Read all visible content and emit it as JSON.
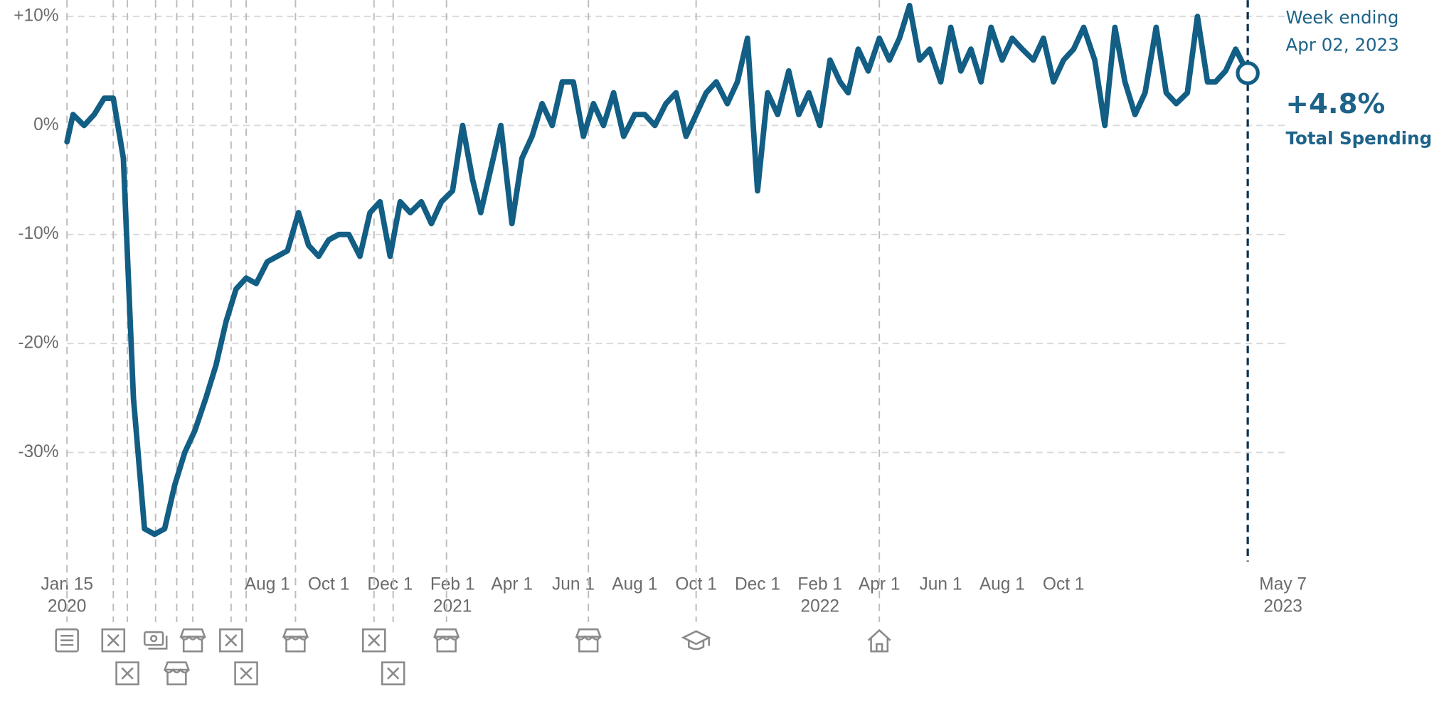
{
  "chart_data": {
    "type": "line",
    "x": [
      "2020-01-15",
      "2020-01-21",
      "2020-02-01",
      "2020-02-11",
      "2020-02-21",
      "2020-03-01",
      "2020-03-11",
      "2020-03-21",
      "2020-04-01",
      "2020-04-11",
      "2020-04-21",
      "2020-05-01",
      "2020-05-11",
      "2020-05-21",
      "2020-06-01",
      "2020-06-11",
      "2020-06-21",
      "2020-07-01",
      "2020-07-11",
      "2020-07-21",
      "2020-08-01",
      "2020-08-11",
      "2020-08-21",
      "2020-09-01",
      "2020-09-11",
      "2020-09-21",
      "2020-10-01",
      "2020-10-11",
      "2020-10-21",
      "2020-11-01",
      "2020-11-11",
      "2020-11-21",
      "2020-12-01",
      "2020-12-11",
      "2020-12-21",
      "2021-01-01",
      "2021-01-11",
      "2021-01-21",
      "2021-02-01",
      "2021-02-11",
      "2021-02-21",
      "2021-03-01",
      "2021-03-11",
      "2021-03-21",
      "2021-04-01",
      "2021-04-11",
      "2021-04-21",
      "2021-05-01",
      "2021-05-11",
      "2021-05-21",
      "2021-06-01",
      "2021-06-11",
      "2021-06-21",
      "2021-07-01",
      "2021-07-11",
      "2021-07-21",
      "2021-08-01",
      "2021-08-11",
      "2021-08-21",
      "2021-09-01",
      "2021-09-11",
      "2021-09-21",
      "2021-10-01",
      "2021-10-11",
      "2021-10-21",
      "2021-11-01",
      "2021-11-11",
      "2021-11-21",
      "2021-12-01",
      "2021-12-11",
      "2021-12-21",
      "2022-01-01",
      "2022-01-11",
      "2022-01-21",
      "2022-02-01",
      "2022-02-11",
      "2022-02-21",
      "2022-03-01",
      "2022-03-11",
      "2022-03-21",
      "2022-04-01",
      "2022-04-11",
      "2022-04-21",
      "2022-05-01",
      "2022-05-11",
      "2022-05-21",
      "2022-06-01",
      "2022-06-11",
      "2022-06-21",
      "2022-07-01",
      "2022-07-11",
      "2022-07-21",
      "2022-08-01",
      "2022-08-11",
      "2022-08-21",
      "2022-09-01",
      "2022-09-11",
      "2022-09-21",
      "2022-10-01",
      "2022-10-11",
      "2022-10-21",
      "2022-11-01",
      "2022-11-11",
      "2022-11-21",
      "2022-12-01",
      "2022-12-11",
      "2022-12-21",
      "2023-01-01",
      "2023-01-11",
      "2023-01-21",
      "2023-02-01",
      "2023-02-11",
      "2023-02-21",
      "2023-03-01",
      "2023-03-11",
      "2023-03-21",
      "2023-04-02"
    ],
    "series": [
      {
        "name": "Total Spending",
        "color": "#125e84",
        "values": [
          -1.5,
          1,
          0,
          1,
          2.5,
          2.5,
          -3,
          -25,
          -37,
          -37.5,
          -37,
          -33,
          -30,
          -28,
          -25,
          -22,
          -18,
          -15,
          -14,
          -14.5,
          -12.5,
          -12,
          -11.5,
          -8,
          -11,
          -12,
          -10.5,
          -10,
          -10,
          -12,
          -8,
          -7,
          -12,
          -7,
          -8,
          -7,
          -9,
          -7,
          -6,
          0,
          -5,
          -8,
          -4,
          0,
          -9,
          -3,
          -1,
          2,
          0,
          4,
          4,
          -1,
          2,
          0,
          3,
          -1,
          1,
          1,
          0,
          2,
          3,
          -1,
          1,
          3,
          4,
          2,
          4,
          8,
          -6,
          3,
          1,
          5,
          1,
          3,
          0,
          6,
          4,
          3,
          7,
          5,
          8,
          6,
          8,
          11,
          6,
          7,
          4,
          9,
          5,
          7,
          4,
          9,
          6,
          8,
          7,
          6,
          8,
          4,
          6,
          7,
          9,
          6,
          0,
          9,
          4,
          1,
          3,
          9,
          3,
          2,
          3,
          10,
          4,
          4,
          5,
          7,
          4.8
        ]
      }
    ],
    "xlim": [
      "2020-01-15",
      "2023-05-07"
    ],
    "xticks": [
      {
        "value": "2020-01-15",
        "label": "Jan 15"
      },
      {
        "value": "2020-08-01",
        "label": "Aug 1"
      },
      {
        "value": "2020-10-01",
        "label": "Oct 1"
      },
      {
        "value": "2020-12-01",
        "label": "Dec 1"
      },
      {
        "value": "2021-02-01",
        "label": "Feb 1"
      },
      {
        "value": "2021-04-01",
        "label": "Apr 1"
      },
      {
        "value": "2021-06-01",
        "label": "Jun 1"
      },
      {
        "value": "2021-08-01",
        "label": "Aug 1"
      },
      {
        "value": "2021-10-01",
        "label": "Oct 1"
      },
      {
        "value": "2021-12-01",
        "label": "Dec 1"
      },
      {
        "value": "2022-02-01",
        "label": "Feb 1"
      },
      {
        "value": "2022-04-01",
        "label": "Apr 1"
      },
      {
        "value": "2022-06-01",
        "label": "Jun 1"
      },
      {
        "value": "2022-08-01",
        "label": "Aug 1"
      },
      {
        "value": "2022-10-01",
        "label": "Oct 1"
      },
      {
        "value": "2023-05-07",
        "label": "May 7"
      }
    ],
    "xtick_years": [
      {
        "value": "2020-01-15",
        "label": "2020"
      },
      {
        "value": "2021-02-01",
        "label": "2021"
      },
      {
        "value": "2022-02-01",
        "label": "2022"
      },
      {
        "value": "2023-05-07",
        "label": "2023"
      }
    ],
    "ylim": [
      -40,
      11.5
    ],
    "yticks": [
      {
        "value": -30,
        "label": "-30%"
      },
      {
        "value": -20,
        "label": "-20%"
      },
      {
        "value": -10,
        "label": "-10%"
      },
      {
        "value": 0,
        "label": "0%"
      },
      {
        "value": 10,
        "label": "+10%"
      }
    ],
    "grid": true,
    "events": [
      {
        "date": "2020-01-15",
        "icon": "document"
      },
      {
        "date": "2020-03-01",
        "icon": "closure"
      },
      {
        "date": "2020-03-15",
        "icon": "closure"
      },
      {
        "date": "2020-04-12",
        "icon": "money"
      },
      {
        "date": "2020-05-03",
        "icon": "store"
      },
      {
        "date": "2020-05-19",
        "icon": "store"
      },
      {
        "date": "2020-06-26",
        "icon": "closure"
      },
      {
        "date": "2020-07-11",
        "icon": "closure"
      },
      {
        "date": "2020-08-29",
        "icon": "store"
      },
      {
        "date": "2020-11-15",
        "icon": "closure"
      },
      {
        "date": "2020-12-04",
        "icon": "closure"
      },
      {
        "date": "2021-01-26",
        "icon": "store"
      },
      {
        "date": "2021-06-16",
        "icon": "store"
      },
      {
        "date": "2021-10-01",
        "icon": "school"
      },
      {
        "date": "2022-04-01",
        "icon": "home"
      }
    ],
    "annotation": {
      "date_caption": "Week ending",
      "date_label": "Apr 02, 2023",
      "value_label": "+4.8%",
      "series_label": "Total Spending"
    }
  }
}
